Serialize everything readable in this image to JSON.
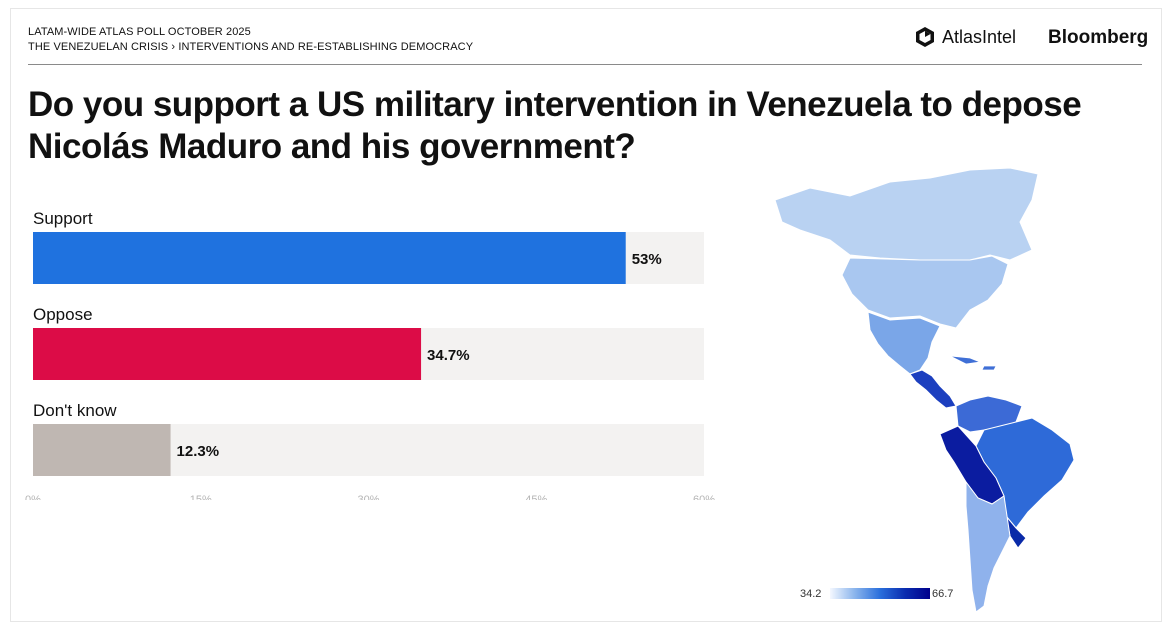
{
  "header": {
    "line1": "LATAM-WIDE ATLAS POLL OCTOBER 2025",
    "line2": "THE VENEZUELAN CRISIS › INTERVENTIONS AND RE-ESTABLISHING DEMOCRACY"
  },
  "brands": {
    "atlas": "AtlasIntel",
    "bloomberg": "Bloomberg"
  },
  "question": "Do you support a US military intervention in Venezuela to depose Nicolás Maduro and his government?",
  "map_legend": {
    "min": "34.2",
    "max": "66.7"
  },
  "chart_data": {
    "type": "bar",
    "orientation": "horizontal",
    "categories": [
      "Support",
      "Oppose",
      "Don't know"
    ],
    "values": [
      53,
      34.7,
      12.3
    ],
    "value_labels": [
      "53%",
      "34.7%",
      "12.3%"
    ],
    "colors": [
      "#1f72df",
      "#dc0c47",
      "#bfb7b2"
    ],
    "track_color": "#f3f2f1",
    "xlim": [
      0,
      60
    ],
    "xticks": [
      0,
      15,
      30,
      45,
      60
    ],
    "xtick_labels": [
      "0%",
      "15%",
      "30%",
      "45%",
      "60%"
    ],
    "grid": false
  }
}
